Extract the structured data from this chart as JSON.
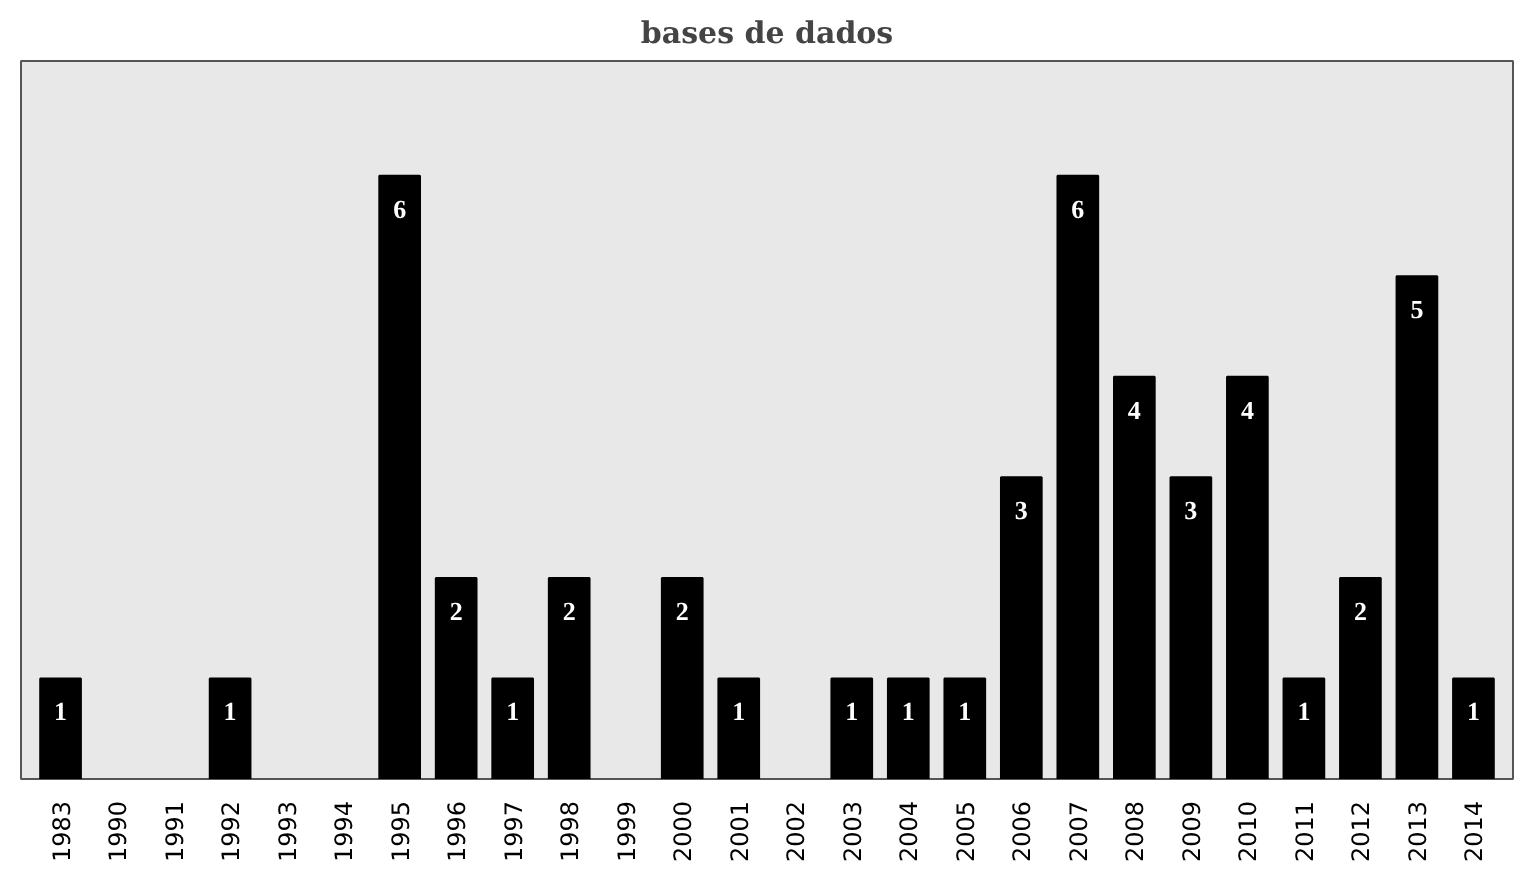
{
  "chart_data": {
    "type": "bar",
    "title": "bases de dados",
    "categories": [
      "1983",
      "1990",
      "1991",
      "1992",
      "1993",
      "1994",
      "1995",
      "1996",
      "1997",
      "1998",
      "1999",
      "2000",
      "2001",
      "2002",
      "2003",
      "2004",
      "2005",
      "2006",
      "2007",
      "2008",
      "2009",
      "2010",
      "2011",
      "2012",
      "2013",
      "2014"
    ],
    "values": [
      1,
      null,
      null,
      1,
      null,
      null,
      6,
      2,
      1,
      2,
      null,
      2,
      1,
      null,
      1,
      1,
      1,
      3,
      6,
      4,
      3,
      4,
      1,
      2,
      5,
      1
    ],
    "color": "#000000",
    "data_labels": true,
    "grid": false
  }
}
